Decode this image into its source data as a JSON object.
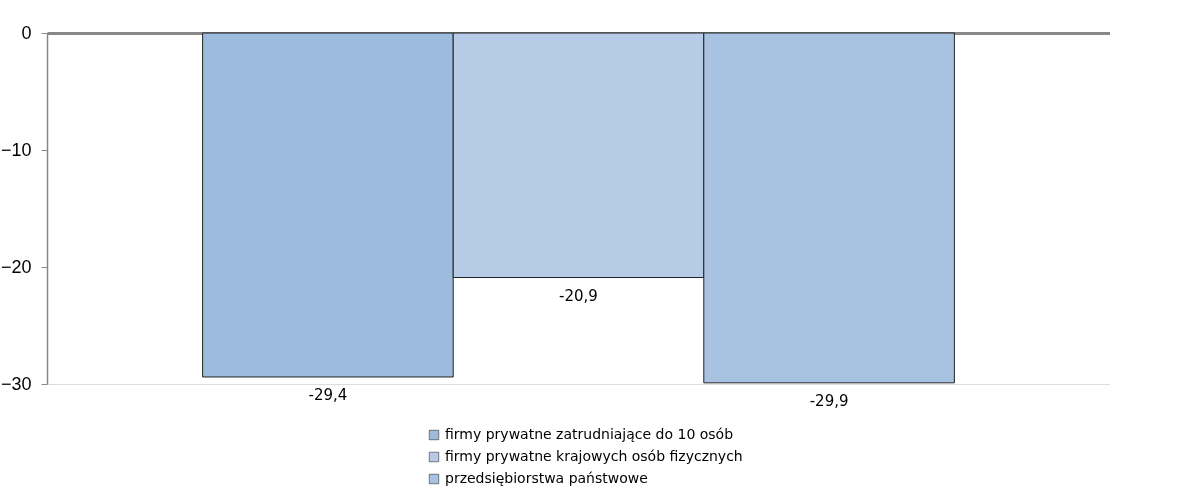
{
  "chart_data": {
    "type": "bar",
    "categories": [
      null
    ],
    "series": [
      {
        "name": "firmy prywatne zatrudniające do 10 osób",
        "color": "#9dbbdd",
        "values": [
          -29.4
        ]
      },
      {
        "name": "firmy prywatne krajowych osób fizycznych",
        "color": "#b6cbe6",
        "values": [
          -20.9
        ]
      },
      {
        "name": "przedsiębiorstwa państwowe",
        "color": "#a8c2e1",
        "values": [
          -29.9
        ]
      }
    ],
    "value_labels": [
      [
        "-29,4"
      ],
      [
        "-20,9"
      ],
      [
        "-29,9"
      ]
    ],
    "ylim": [
      -30,
      0
    ],
    "yticks": [
      -30,
      -20,
      -10,
      0
    ],
    "grid": false,
    "legend": "bottom"
  }
}
